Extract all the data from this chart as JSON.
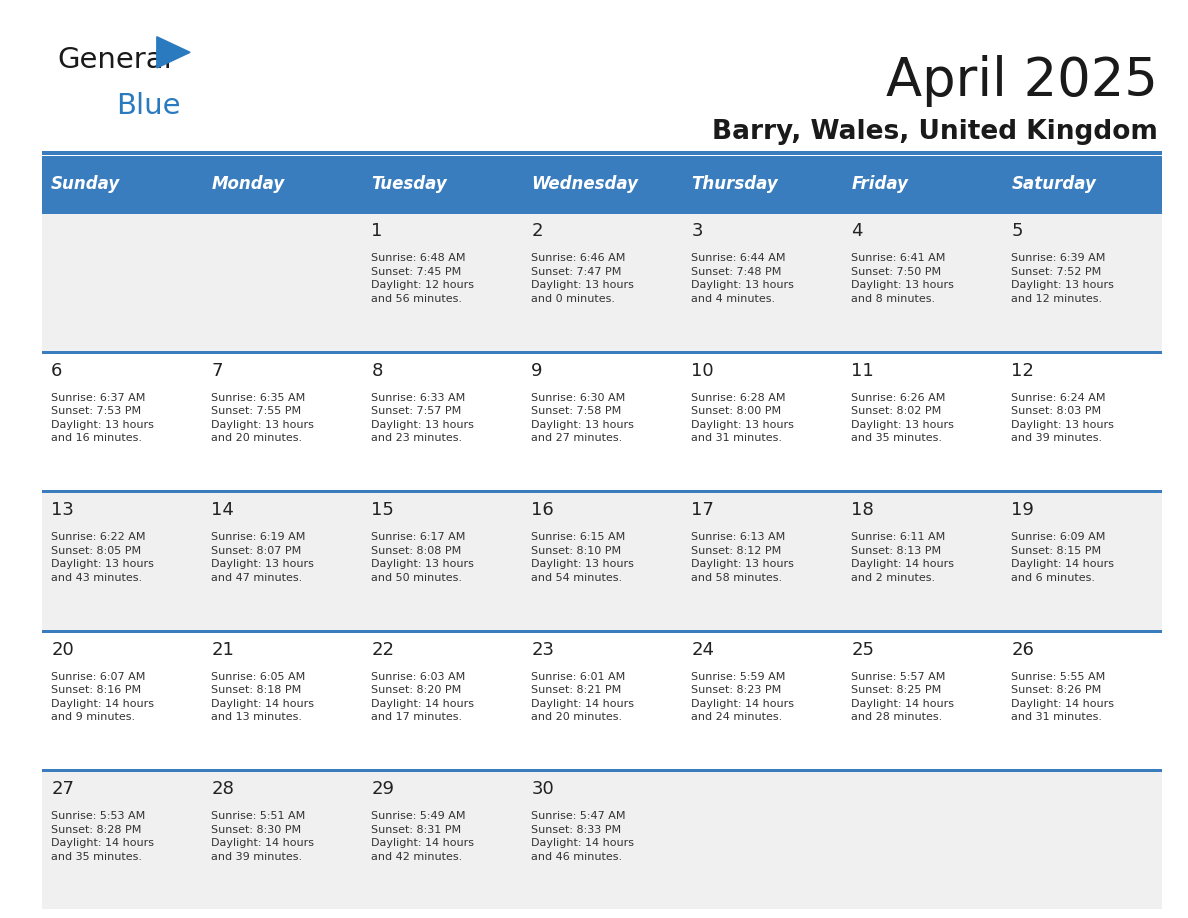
{
  "title": "April 2025",
  "subtitle": "Barry, Wales, United Kingdom",
  "days_of_week": [
    "Sunday",
    "Monday",
    "Tuesday",
    "Wednesday",
    "Thursday",
    "Friday",
    "Saturday"
  ],
  "header_bg": "#3a7dbf",
  "header_text": "#ffffff",
  "row_bg_even": "#f0f0f0",
  "row_bg_odd": "#ffffff",
  "divider_color": "#3a7dbf",
  "text_color": "#333333",
  "day_num_color": "#222222",
  "logo_blue_color": "#2a7abf",
  "calendar": [
    [
      {
        "day": null,
        "sunrise": null,
        "sunset": null,
        "daylight": null
      },
      {
        "day": null,
        "sunrise": null,
        "sunset": null,
        "daylight": null
      },
      {
        "day": 1,
        "sunrise": "6:48 AM",
        "sunset": "7:45 PM",
        "daylight": "12 hours\nand 56 minutes."
      },
      {
        "day": 2,
        "sunrise": "6:46 AM",
        "sunset": "7:47 PM",
        "daylight": "13 hours\nand 0 minutes."
      },
      {
        "day": 3,
        "sunrise": "6:44 AM",
        "sunset": "7:48 PM",
        "daylight": "13 hours\nand 4 minutes."
      },
      {
        "day": 4,
        "sunrise": "6:41 AM",
        "sunset": "7:50 PM",
        "daylight": "13 hours\nand 8 minutes."
      },
      {
        "day": 5,
        "sunrise": "6:39 AM",
        "sunset": "7:52 PM",
        "daylight": "13 hours\nand 12 minutes."
      }
    ],
    [
      {
        "day": 6,
        "sunrise": "6:37 AM",
        "sunset": "7:53 PM",
        "daylight": "13 hours\nand 16 minutes."
      },
      {
        "day": 7,
        "sunrise": "6:35 AM",
        "sunset": "7:55 PM",
        "daylight": "13 hours\nand 20 minutes."
      },
      {
        "day": 8,
        "sunrise": "6:33 AM",
        "sunset": "7:57 PM",
        "daylight": "13 hours\nand 23 minutes."
      },
      {
        "day": 9,
        "sunrise": "6:30 AM",
        "sunset": "7:58 PM",
        "daylight": "13 hours\nand 27 minutes."
      },
      {
        "day": 10,
        "sunrise": "6:28 AM",
        "sunset": "8:00 PM",
        "daylight": "13 hours\nand 31 minutes."
      },
      {
        "day": 11,
        "sunrise": "6:26 AM",
        "sunset": "8:02 PM",
        "daylight": "13 hours\nand 35 minutes."
      },
      {
        "day": 12,
        "sunrise": "6:24 AM",
        "sunset": "8:03 PM",
        "daylight": "13 hours\nand 39 minutes."
      }
    ],
    [
      {
        "day": 13,
        "sunrise": "6:22 AM",
        "sunset": "8:05 PM",
        "daylight": "13 hours\nand 43 minutes."
      },
      {
        "day": 14,
        "sunrise": "6:19 AM",
        "sunset": "8:07 PM",
        "daylight": "13 hours\nand 47 minutes."
      },
      {
        "day": 15,
        "sunrise": "6:17 AM",
        "sunset": "8:08 PM",
        "daylight": "13 hours\nand 50 minutes."
      },
      {
        "day": 16,
        "sunrise": "6:15 AM",
        "sunset": "8:10 PM",
        "daylight": "13 hours\nand 54 minutes."
      },
      {
        "day": 17,
        "sunrise": "6:13 AM",
        "sunset": "8:12 PM",
        "daylight": "13 hours\nand 58 minutes."
      },
      {
        "day": 18,
        "sunrise": "6:11 AM",
        "sunset": "8:13 PM",
        "daylight": "14 hours\nand 2 minutes."
      },
      {
        "day": 19,
        "sunrise": "6:09 AM",
        "sunset": "8:15 PM",
        "daylight": "14 hours\nand 6 minutes."
      }
    ],
    [
      {
        "day": 20,
        "sunrise": "6:07 AM",
        "sunset": "8:16 PM",
        "daylight": "14 hours\nand 9 minutes."
      },
      {
        "day": 21,
        "sunrise": "6:05 AM",
        "sunset": "8:18 PM",
        "daylight": "14 hours\nand 13 minutes."
      },
      {
        "day": 22,
        "sunrise": "6:03 AM",
        "sunset": "8:20 PM",
        "daylight": "14 hours\nand 17 minutes."
      },
      {
        "day": 23,
        "sunrise": "6:01 AM",
        "sunset": "8:21 PM",
        "daylight": "14 hours\nand 20 minutes."
      },
      {
        "day": 24,
        "sunrise": "5:59 AM",
        "sunset": "8:23 PM",
        "daylight": "14 hours\nand 24 minutes."
      },
      {
        "day": 25,
        "sunrise": "5:57 AM",
        "sunset": "8:25 PM",
        "daylight": "14 hours\nand 28 minutes."
      },
      {
        "day": 26,
        "sunrise": "5:55 AM",
        "sunset": "8:26 PM",
        "daylight": "14 hours\nand 31 minutes."
      }
    ],
    [
      {
        "day": 27,
        "sunrise": "5:53 AM",
        "sunset": "8:28 PM",
        "daylight": "14 hours\nand 35 minutes."
      },
      {
        "day": 28,
        "sunrise": "5:51 AM",
        "sunset": "8:30 PM",
        "daylight": "14 hours\nand 39 minutes."
      },
      {
        "day": 29,
        "sunrise": "5:49 AM",
        "sunset": "8:31 PM",
        "daylight": "14 hours\nand 42 minutes."
      },
      {
        "day": 30,
        "sunrise": "5:47 AM",
        "sunset": "8:33 PM",
        "daylight": "14 hours\nand 46 minutes."
      },
      {
        "day": null,
        "sunrise": null,
        "sunset": null,
        "daylight": null
      },
      {
        "day": null,
        "sunrise": null,
        "sunset": null,
        "daylight": null
      },
      {
        "day": null,
        "sunrise": null,
        "sunset": null,
        "daylight": null
      }
    ]
  ]
}
